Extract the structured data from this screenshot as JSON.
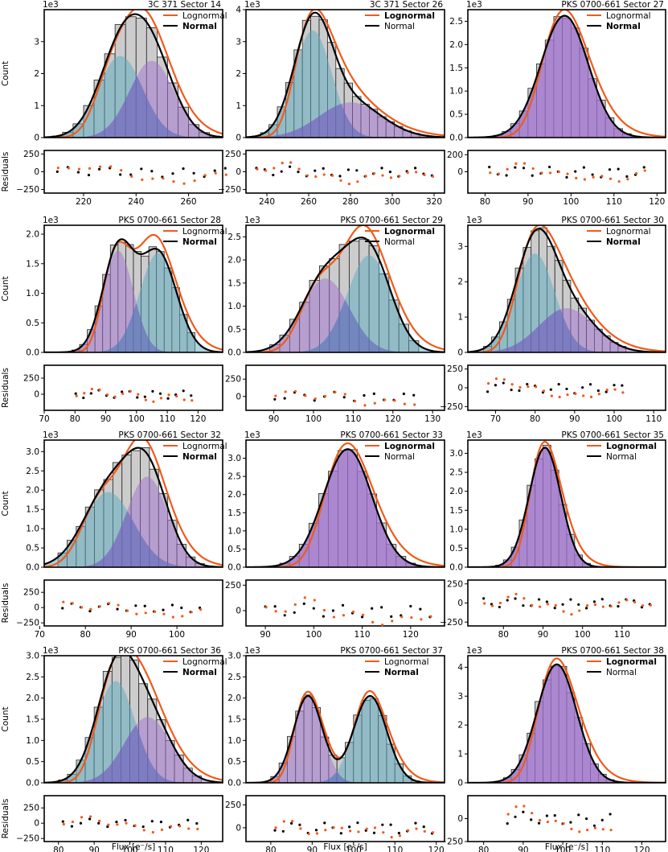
{
  "figure": {
    "count_label": "Count",
    "residuals_label": "Residuals",
    "xlabel": "Flux [e⁻/s]",
    "exponent_label": "1e3",
    "legend": {
      "lognormal": "Lognormal",
      "normal": "Normal"
    },
    "colors": {
      "lognormal": "#f05a1a",
      "normal": "#000000",
      "hist_fill": "#cccccc",
      "comp_blue": "#5aa9c0",
      "comp_purple": "#a070d0",
      "comp_cross": "#5050b0"
    }
  },
  "chart_data": [
    {
      "type": "bar",
      "title": "3C 371   Sector 14",
      "target": "3C 371",
      "sector": "Sector 14",
      "legend_bold": "normal",
      "mode": "double",
      "comps": [
        {
          "mu": 234,
          "sigma": 8.5,
          "amp": 2.55,
          "color": "blue"
        },
        {
          "mu": 246,
          "sigma": 8.5,
          "amp": 2.4,
          "color": "purple"
        }
      ],
      "bins": {
        "start": 208,
        "width": 4,
        "count": 17
      },
      "xlim": [
        205,
        273
      ],
      "xticks": [
        220,
        240,
        260
      ],
      "xtick_labels": [
        "220",
        "240",
        "260"
      ],
      "ylim": [
        0,
        4.0
      ],
      "yticks": [
        0,
        1,
        2,
        3
      ],
      "ytick_labels": [
        "0",
        "1",
        "2",
        "3"
      ],
      "res_ylim": [
        -300,
        300
      ],
      "res_yticks": [
        -250,
        0,
        250
      ],
      "res_ytick_labels": [
        "−250",
        "0",
        "250"
      ]
    },
    {
      "type": "bar",
      "title": "3C 371   Sector 26",
      "target": "3C 371",
      "sector": "Sector 26",
      "legend_bold": "lognormal",
      "mode": "double",
      "comps": [
        {
          "mu": 262,
          "sigma": 9,
          "amp": 3.35,
          "color": "blue"
        },
        {
          "mu": 280,
          "sigma": 15,
          "amp": 1.1,
          "color": "purple"
        }
      ],
      "bins": {
        "start": 233,
        "width": 4,
        "count": 22
      },
      "xlim": [
        230,
        325
      ],
      "xticks": [
        240,
        260,
        280,
        300,
        320
      ],
      "xtick_labels": [
        "240",
        "260",
        "280",
        "300",
        "320"
      ],
      "ylim": [
        0,
        4.0
      ],
      "yticks": [
        0,
        1,
        2,
        3,
        4
      ],
      "ytick_labels": [
        "0",
        "1",
        "2",
        "3",
        "4"
      ],
      "res_ylim": [
        -300,
        300
      ],
      "res_yticks": [
        -250,
        0,
        250
      ],
      "res_ytick_labels": [
        "−250",
        "0",
        "250"
      ]
    },
    {
      "type": "bar",
      "title": "PKS 0700-661   Sector 27",
      "target": "PKS 0700-661",
      "sector": "Sector 27",
      "legend_bold": "normal",
      "mode": "single",
      "comps": [
        {
          "mu": 98.5,
          "sigma": 5.5,
          "amp": 2.62,
          "color": "purple"
        }
      ],
      "bins": {
        "start": 80,
        "width": 2,
        "count": 19
      },
      "xlim": [
        76,
        122
      ],
      "xticks": [
        80,
        90,
        100,
        110,
        120
      ],
      "xtick_labels": [
        "80",
        "90",
        "100",
        "110",
        "120"
      ],
      "ylim": [
        0,
        2.75
      ],
      "yticks": [
        0,
        0.5,
        1.0,
        1.5,
        2.0,
        2.5
      ],
      "ytick_labels": [
        "0.0",
        "0.5",
        "1.0",
        "1.5",
        "2.0",
        "2.5"
      ],
      "res_ylim": [
        -250,
        250
      ],
      "res_yticks": [
        0,
        200
      ],
      "res_ytick_labels": [
        "0",
        "200"
      ]
    },
    {
      "type": "bar",
      "title": "PKS 0700-661   Sector 28",
      "target": "PKS 0700-661",
      "sector": "Sector 28",
      "legend_bold": "normal",
      "mode": "double",
      "comps": [
        {
          "mu": 94,
          "sigma": 5,
          "amp": 1.72,
          "color": "purple"
        },
        {
          "mu": 107,
          "sigma": 6,
          "amp": 1.68,
          "color": "blue"
        }
      ],
      "bins": {
        "start": 79,
        "width": 2.5,
        "count": 16
      },
      "xlim": [
        70,
        128
      ],
      "xticks": [
        70,
        80,
        90,
        100,
        110,
        120
      ],
      "xtick_labels": [
        "70",
        "80",
        "90",
        "100",
        "110",
        "120"
      ],
      "ylim": [
        0,
        2.15
      ],
      "yticks": [
        0,
        0.5,
        1.0,
        1.5,
        2.0
      ],
      "ytick_labels": [
        "0.0",
        "0.5",
        "1.0",
        "1.5",
        "2.0"
      ],
      "res_ylim": [
        -250,
        450
      ],
      "res_yticks": [
        0,
        250
      ],
      "res_ytick_labels": [
        "0",
        "250"
      ]
    },
    {
      "type": "bar",
      "title": "PKS 0700-661   Sector 29",
      "target": "PKS 0700-661",
      "sector": "Sector 29",
      "legend_bold": "lognormal",
      "mode": "double",
      "comps": [
        {
          "mu": 103,
          "sigma": 6,
          "amp": 1.6,
          "color": "purple"
        },
        {
          "mu": 114,
          "sigma": 5.5,
          "amp": 2.1,
          "color": "blue"
        }
      ],
      "bins": {
        "start": 89,
        "width": 2.5,
        "count": 15
      },
      "xlim": [
        83,
        133
      ],
      "xticks": [
        90,
        100,
        110,
        120,
        130
      ],
      "xtick_labels": [
        "90",
        "100",
        "110",
        "120",
        "130"
      ],
      "ylim": [
        0,
        2.75
      ],
      "yticks": [
        0,
        0.5,
        1.0,
        1.5,
        2.0,
        2.5
      ],
      "ytick_labels": [
        "0.0",
        "0.5",
        "1.0",
        "1.5",
        "2.0",
        "2.5"
      ],
      "res_ylim": [
        -200,
        450
      ],
      "res_yticks": [
        0,
        250
      ],
      "res_ytick_labels": [
        "0",
        "250"
      ]
    },
    {
      "type": "bar",
      "title": "PKS 0700-661   Sector 30",
      "target": "PKS 0700-661",
      "sector": "Sector 30",
      "legend_bold": "normal",
      "mode": "double",
      "comps": [
        {
          "mu": 80,
          "sigma": 5,
          "amp": 2.8,
          "color": "blue"
        },
        {
          "mu": 88,
          "sigma": 7,
          "amp": 1.25,
          "color": "purple"
        }
      ],
      "bins": {
        "start": 67,
        "width": 2,
        "count": 18
      },
      "xlim": [
        63,
        113
      ],
      "xticks": [
        70,
        80,
        90,
        100,
        110
      ],
      "xtick_labels": [
        "70",
        "80",
        "90",
        "100",
        "110"
      ],
      "ylim": [
        0,
        3.6
      ],
      "yticks": [
        0,
        1,
        2,
        3
      ],
      "ytick_labels": [
        "0",
        "1",
        "2",
        "3"
      ],
      "res_ylim": [
        -300,
        300
      ],
      "res_yticks": [
        -250,
        0,
        250
      ],
      "res_ytick_labels": [
        "−250",
        "0",
        "250"
      ]
    },
    {
      "type": "bar",
      "title": "PKS 0700-661   Sector 32",
      "target": "PKS 0700-661",
      "sector": "Sector 32",
      "legend_bold": "normal",
      "mode": "double",
      "comps": [
        {
          "mu": 85,
          "sigma": 5.5,
          "amp": 1.95,
          "color": "blue"
        },
        {
          "mu": 93.5,
          "sigma": 4.5,
          "amp": 2.35,
          "color": "purple"
        }
      ],
      "bins": {
        "start": 74,
        "width": 2,
        "count": 16
      },
      "xlim": [
        71,
        110
      ],
      "xticks": [
        70,
        80,
        90,
        100
      ],
      "xtick_labels": [
        "70",
        "80",
        "90",
        "100"
      ],
      "ylim": [
        0,
        3.3
      ],
      "yticks": [
        0,
        0.5,
        1.0,
        1.5,
        2.0,
        2.5,
        3.0
      ],
      "ytick_labels": [
        "0.0",
        "0.5",
        "1.0",
        "1.5",
        "2.0",
        "2.5",
        "3.0"
      ],
      "res_ylim": [
        -300,
        450
      ],
      "res_yticks": [
        -250,
        0,
        250
      ],
      "res_ytick_labels": [
        "−250",
        "0",
        "250"
      ]
    },
    {
      "type": "bar",
      "title": "PKS 0700-661   Sector 33",
      "target": "PKS 0700-661",
      "sector": "Sector 33",
      "legend_bold": "lognormal",
      "mode": "single",
      "comps": [
        {
          "mu": 107,
          "sigma": 5,
          "amp": 3.25,
          "color": "purple"
        }
      ],
      "bins": {
        "start": 89,
        "width": 2,
        "count": 18
      },
      "xlim": [
        86,
        127
      ],
      "xticks": [
        90,
        100,
        110,
        120
      ],
      "xtick_labels": [
        "90",
        "100",
        "110",
        "120"
      ],
      "ylim": [
        0,
        3.5
      ],
      "yticks": [
        0,
        0.5,
        1.0,
        1.5,
        2.0,
        2.5,
        3.0
      ],
      "ytick_labels": [
        "0.0",
        "0.5",
        "1.0",
        "1.5",
        "2.0",
        "2.5",
        "3.0"
      ],
      "res_ylim": [
        -150,
        300
      ],
      "res_yticks": [
        0,
        250
      ],
      "res_ytick_labels": [
        "0",
        "250"
      ]
    },
    {
      "type": "bar",
      "title": "PKS 0700-661   Sector 35",
      "target": "PKS 0700-661",
      "sector": "Sector 35",
      "legend_bold": "lognormal",
      "mode": "single",
      "comps": [
        {
          "mu": 90.5,
          "sigma": 4,
          "amp": 3.15,
          "color": "purple"
        }
      ],
      "bins": {
        "start": 74,
        "width": 2,
        "count": 22
      },
      "xlim": [
        71,
        121
      ],
      "xticks": [
        80,
        90,
        100,
        110
      ],
      "xtick_labels": [
        "80",
        "90",
        "100",
        "110"
      ],
      "ylim": [
        0,
        3.35
      ],
      "yticks": [
        0,
        0.5,
        1.0,
        1.5,
        2.0,
        2.5,
        3.0
      ],
      "ytick_labels": [
        "0.0",
        "0.5",
        "1.0",
        "1.5",
        "2.0",
        "2.5",
        "3.0"
      ],
      "res_ylim": [
        -300,
        300
      ],
      "res_yticks": [
        -250,
        0,
        250
      ],
      "res_ytick_labels": [
        "−250",
        "0",
        "250"
      ]
    },
    {
      "type": "bar",
      "title": "PKS 0700-661   Sector 36",
      "target": "PKS 0700-661",
      "sector": "Sector 36",
      "legend_bold": "normal",
      "mode": "double",
      "comps": [
        {
          "mu": 96,
          "sigma": 5.5,
          "amp": 2.4,
          "color": "blue"
        },
        {
          "mu": 105,
          "sigma": 6.5,
          "amp": 1.55,
          "color": "purple"
        }
      ],
      "bins": {
        "start": 80,
        "width": 2.5,
        "count": 16
      },
      "xlim": [
        76,
        126
      ],
      "xticks": [
        80,
        90,
        100,
        110,
        120
      ],
      "xtick_labels": [
        "80",
        "90",
        "100",
        "110",
        "120"
      ],
      "ylim": [
        0,
        3.0
      ],
      "yticks": [
        0,
        0.5,
        1.0,
        1.5,
        2.0,
        2.5,
        3.0
      ],
      "ytick_labels": [
        "0.0",
        "0.5",
        "1.0",
        "1.5",
        "2.0",
        "2.5",
        "3.0"
      ],
      "res_ylim": [
        -300,
        450
      ],
      "res_yticks": [
        -250,
        0,
        250
      ],
      "res_ytick_labels": [
        "−250",
        "0",
        "250"
      ]
    },
    {
      "type": "bar",
      "title": "PKS 0700-661   Sector 37",
      "target": "PKS 0700-661",
      "sector": "Sector 37",
      "legend_bold": "normal",
      "mode": "double",
      "comps": [
        {
          "mu": 89,
          "sigma": 3.5,
          "amp": 2.05,
          "color": "purple"
        },
        {
          "mu": 104,
          "sigma": 4,
          "amp": 2.05,
          "color": "blue"
        }
      ],
      "bins": {
        "start": 80,
        "width": 2,
        "count": 20
      },
      "xlim": [
        74,
        122
      ],
      "xticks": [
        80,
        90,
        100,
        110,
        120
      ],
      "xtick_labels": [
        "80",
        "90",
        "100",
        "110",
        "120"
      ],
      "ylim": [
        0,
        3.0
      ],
      "yticks": [
        0,
        0.5,
        1.0,
        1.5,
        2.0,
        2.5,
        3.0
      ],
      "ytick_labels": [
        "0.0",
        "0.5",
        "1.0",
        "1.5",
        "2.0",
        "2.5",
        "3.0"
      ],
      "res_ylim": [
        -150,
        350
      ],
      "res_yticks": [
        0,
        250
      ],
      "res_ytick_labels": [
        "0",
        "250"
      ]
    },
    {
      "type": "bar",
      "title": "PKS 0700-661   Sector 38",
      "target": "PKS 0700-661",
      "sector": "Sector 38",
      "legend_bold": "lognormal",
      "mode": "single",
      "comps": [
        {
          "mu": 98.5,
          "sigma": 5,
          "amp": 4.1,
          "color": "purple"
        }
      ],
      "bins": {
        "start": 85,
        "width": 2,
        "count": 14
      },
      "xlim": [
        76,
        126
      ],
      "xticks": [
        80,
        90,
        100,
        110,
        120
      ],
      "xtick_labels": [
        "80",
        "90",
        "100",
        "110",
        "120"
      ],
      "ylim": [
        0,
        4.4
      ],
      "yticks": [
        0,
        1,
        2,
        3,
        4
      ],
      "ytick_labels": [
        "0",
        "1",
        "2",
        "3",
        "4"
      ],
      "res_ylim": [
        -250,
        250
      ],
      "res_yticks": [
        -250,
        0
      ],
      "res_ytick_labels": [
        "−250",
        "0"
      ]
    }
  ]
}
